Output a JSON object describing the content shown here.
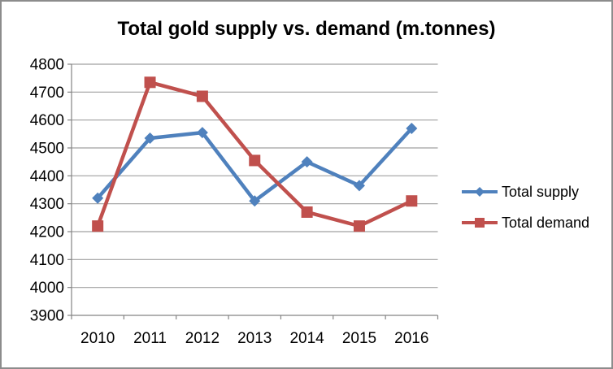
{
  "chart_data": {
    "type": "line",
    "title": "Total gold supply vs. demand (m.tonnes)",
    "categories": [
      "2010",
      "2011",
      "2012",
      "2013",
      "2014",
      "2015",
      "2016"
    ],
    "series": [
      {
        "name": "Total supply",
        "marker": "diamond",
        "color": "#4F81BD",
        "values": [
          4320,
          4535,
          4555,
          4310,
          4450,
          4365,
          4570
        ]
      },
      {
        "name": "Total demand",
        "marker": "square",
        "color": "#C0504D",
        "values": [
          4220,
          4735,
          4685,
          4455,
          4270,
          4220,
          4310
        ]
      }
    ],
    "xlabel": "",
    "ylabel": "",
    "ylim": [
      3900,
      4800
    ],
    "ytick_step": 100,
    "grid": true,
    "legend_position": "right"
  },
  "style": {
    "background": "#FFFFFF",
    "border_color": "#8C8C8C",
    "axis_color": "#848484",
    "gridline_color": "#A0A0A0",
    "text_color": "#000000"
  }
}
